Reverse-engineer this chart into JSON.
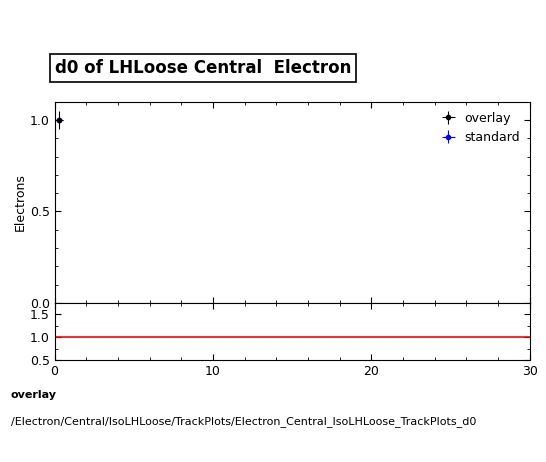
{
  "title": "d0 of LHLoose Central  Electron",
  "ylabel_main": "Electrons",
  "xlabel": "",
  "xlim": [
    0,
    30
  ],
  "ylim_main": [
    0,
    1.1
  ],
  "ylim_ratio": [
    0.5,
    1.75
  ],
  "ratio_yticks": [
    0.5,
    1.0,
    1.5
  ],
  "main_yticks": [
    0,
    0.5,
    1.0
  ],
  "overlay_x": [
    0.25
  ],
  "overlay_y": [
    1.0
  ],
  "overlay_xerr": [
    0.25
  ],
  "overlay_yerr": [
    0.05
  ],
  "standard_x": [
    0.25
  ],
  "standard_y": [
    1.0
  ],
  "standard_xerr": [
    0.25
  ],
  "standard_yerr": [
    0.0
  ],
  "overlay_color": "#000000",
  "standard_color": "#0000ff",
  "ratio_line_color": "#ff0000",
  "ratio_line_y": 1.0,
  "legend_overlay": "overlay",
  "legend_standard": "standard",
  "footer_line1": "overlay",
  "footer_line2": "/Electron/Central/IsoLHLoose/TrackPlots/Electron_Central_IsoLHLoose_TrackPlots_d0",
  "title_fontsize": 12,
  "axis_fontsize": 9,
  "legend_fontsize": 9,
  "footer_fontsize": 8,
  "background_color": "#ffffff",
  "xticks": [
    0,
    10,
    20,
    30
  ]
}
